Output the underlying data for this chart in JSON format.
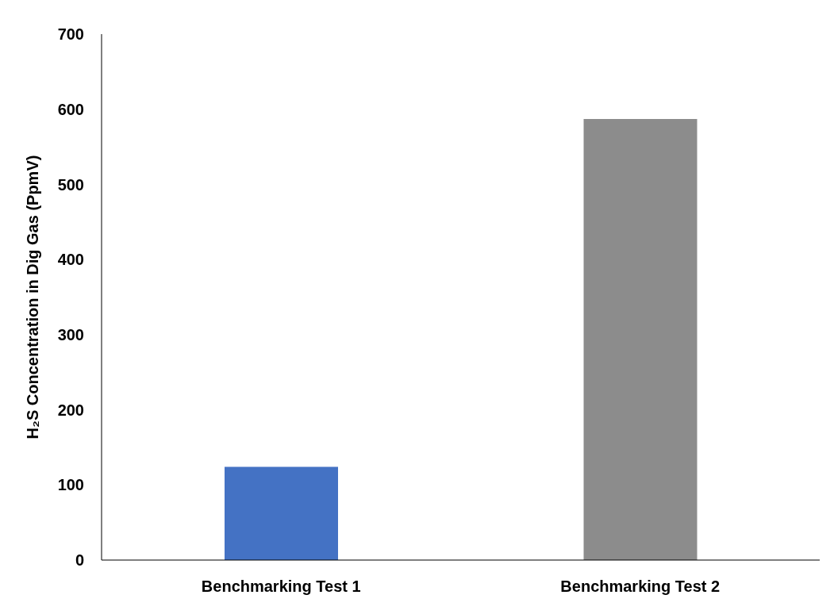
{
  "chart_data": {
    "type": "bar",
    "ylabel": "H₂S Concentration in Dig Gas (PpmV)",
    "categories": [
      "Benchmarking Test 1",
      "Benchmarking Test 2"
    ],
    "values": [
      124,
      587
    ],
    "colors": [
      "#4472c4",
      "#8c8c8c"
    ],
    "ylim": [
      0,
      700
    ],
    "yticks": [
      0,
      100,
      200,
      300,
      400,
      500,
      600,
      700
    ],
    "grid": false,
    "legend": false
  }
}
